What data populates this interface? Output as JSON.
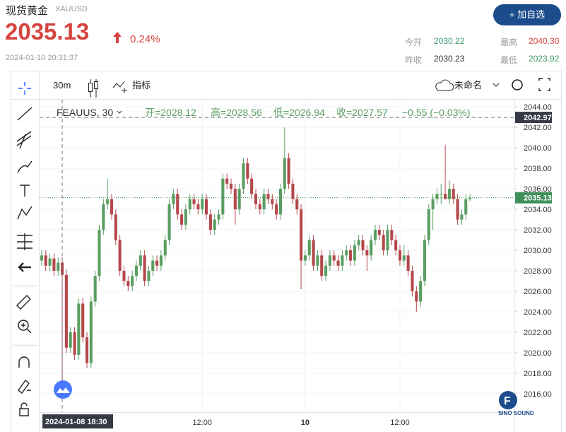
{
  "header": {
    "title": "现货黄金",
    "symbol": "XAUUSD",
    "price": "2035.13",
    "change_pct": "0.24%",
    "timestamp": "2024-01-10 20:31:37",
    "button": "+ 加自选",
    "stats": [
      {
        "label": "今开",
        "value": "2030.22"
      },
      {
        "label": "最高",
        "value": "2040.30"
      },
      {
        "label": "昨收",
        "value": "2030.23"
      },
      {
        "label": "最低",
        "value": "2023.92"
      }
    ]
  },
  "toolbar": {
    "interval": "30m",
    "indicators": "指标",
    "layout": "未命名"
  },
  "legend": {
    "symbol": "FEAUUS, 30",
    "open": "开=2028.12",
    "high": "高=2028.56",
    "low": "低=2026.94",
    "close": "收=2027.57",
    "change": "−0.55 (−0.03%)"
  },
  "logo_text": "SINO SOUND",
  "chart_data": {
    "type": "candlestick",
    "up_color": "#5a9e62",
    "down_color": "#b5474b",
    "ylim": [
      2014.2,
      2044.7
    ],
    "xlim": [
      -0.5,
      114.8
    ],
    "yticks": [
      {
        "value": 2016,
        "label": "2016.00"
      },
      {
        "value": 2018,
        "label": "2018.00"
      },
      {
        "value": 2020,
        "label": "2020.00"
      },
      {
        "value": 2022,
        "label": "2022.00"
      },
      {
        "value": 2024,
        "label": "2024.00"
      },
      {
        "value": 2026,
        "label": "2026.00"
      },
      {
        "value": 2028,
        "label": "2028.00"
      },
      {
        "value": 2030,
        "label": "2030.00"
      },
      {
        "value": 2032,
        "label": "2032.00"
      },
      {
        "value": 2034,
        "label": "2034.00"
      },
      {
        "value": 2036,
        "label": "2036.00"
      },
      {
        "value": 2038,
        "label": "2038.00"
      },
      {
        "value": 2040,
        "label": "2040.00"
      },
      {
        "value": 2042,
        "label": "2042.00"
      },
      {
        "value": 2044,
        "label": "2044.00"
      }
    ],
    "xticks": [
      {
        "value": 39,
        "label": "12:00"
      },
      {
        "value": 64,
        "label": "10"
      },
      {
        "value": 87,
        "label": "12:00"
      }
    ],
    "crosshair": {
      "x": {
        "value": 5,
        "label": "2024-01-08  18:30"
      },
      "y": 2042.97
    },
    "last_price": 2035.13,
    "candles": [
      [
        2029.0,
        2030.0,
        2028.5,
        2029.5
      ],
      [
        2029.5,
        2030.0,
        2028.0,
        2028.5
      ],
      [
        2028.5,
        2029.7,
        2028.0,
        2029.2
      ],
      [
        2029.2,
        2029.7,
        2027.5,
        2028.0
      ],
      [
        2028.0,
        2029.3,
        2027.5,
        2028.8
      ],
      [
        2028.8,
        2029.3,
        2017.0,
        2027.6
      ],
      [
        2027.6,
        2028.1,
        2020.0,
        2020.5
      ],
      [
        2020.5,
        2022.5,
        2020.0,
        2022.0
      ],
      [
        2022.0,
        2022.5,
        2019.3,
        2019.8
      ],
      [
        2019.8,
        2025.3,
        2019.3,
        2024.8
      ],
      [
        2024.8,
        2025.3,
        2021.0,
        2021.5
      ],
      [
        2021.5,
        2022.0,
        2018.5,
        2019.0
      ],
      [
        2019.0,
        2025.5,
        2018.5,
        2025.0
      ],
      [
        2025.0,
        2028.0,
        2024.5,
        2027.5
      ],
      [
        2027.5,
        2032.5,
        2027.0,
        2032.0
      ],
      [
        2032.0,
        2035.0,
        2031.5,
        2034.5
      ],
      [
        2034.5,
        2037.0,
        2034.0,
        2035.0
      ],
      [
        2035.0,
        2035.5,
        2033.0,
        2033.5
      ],
      [
        2033.5,
        2034.0,
        2030.5,
        2031.0
      ],
      [
        2031.0,
        2031.5,
        2027.5,
        2028.0
      ],
      [
        2028.0,
        2028.5,
        2026.5,
        2027.0
      ],
      [
        2027.0,
        2027.5,
        2026.0,
        2026.5
      ],
      [
        2026.5,
        2028.0,
        2026.0,
        2027.5
      ],
      [
        2027.5,
        2029.0,
        2027.0,
        2028.5
      ],
      [
        2028.5,
        2030.0,
        2028.0,
        2029.5
      ],
      [
        2029.5,
        2030.0,
        2026.5,
        2027.0
      ],
      [
        2027.0,
        2028.5,
        2026.5,
        2028.0
      ],
      [
        2028.0,
        2029.5,
        2027.5,
        2029.0
      ],
      [
        2029.0,
        2029.5,
        2028.0,
        2028.5
      ],
      [
        2028.5,
        2030.0,
        2028.0,
        2029.5
      ],
      [
        2029.5,
        2031.5,
        2029.0,
        2031.0
      ],
      [
        2031.0,
        2035.0,
        2030.5,
        2034.5
      ],
      [
        2034.5,
        2036.0,
        2034.0,
        2035.5
      ],
      [
        2035.5,
        2036.0,
        2033.0,
        2033.5
      ],
      [
        2033.5,
        2034.0,
        2032.0,
        2032.5
      ],
      [
        2032.5,
        2034.5,
        2032.0,
        2034.0
      ],
      [
        2034.0,
        2035.5,
        2033.5,
        2035.0
      ],
      [
        2035.0,
        2035.5,
        2034.0,
        2034.5
      ],
      [
        2034.5,
        2035.0,
        2033.5,
        2034.0
      ],
      [
        2034.0,
        2035.5,
        2033.5,
        2035.0
      ],
      [
        2035.0,
        2035.5,
        2033.0,
        2033.5
      ],
      [
        2033.5,
        2034.0,
        2031.5,
        2032.0
      ],
      [
        2032.0,
        2033.5,
        2031.5,
        2033.0
      ],
      [
        2033.0,
        2034.0,
        2032.5,
        2033.5
      ],
      [
        2033.5,
        2037.5,
        2033.0,
        2037.0
      ],
      [
        2037.0,
        2037.5,
        2036.0,
        2036.5
      ],
      [
        2036.5,
        2037.0,
        2035.5,
        2036.0
      ],
      [
        2036.0,
        2036.5,
        2032.5,
        2034.0
      ],
      [
        2034.0,
        2036.5,
        2033.5,
        2036.0
      ],
      [
        2036.0,
        2039.0,
        2035.5,
        2038.5
      ],
      [
        2038.5,
        2039.0,
        2036.5,
        2037.0
      ],
      [
        2037.0,
        2037.5,
        2035.0,
        2035.5
      ],
      [
        2035.5,
        2036.0,
        2034.0,
        2034.5
      ],
      [
        2034.5,
        2035.0,
        2033.5,
        2034.0
      ],
      [
        2034.0,
        2036.0,
        2033.5,
        2035.5
      ],
      [
        2035.5,
        2036.0,
        2034.5,
        2035.0
      ],
      [
        2035.0,
        2035.5,
        2034.0,
        2034.5
      ],
      [
        2034.5,
        2035.0,
        2033.0,
        2033.5
      ],
      [
        2033.5,
        2036.5,
        2033.0,
        2036.0
      ],
      [
        2036.0,
        2042.0,
        2035.5,
        2039.0
      ],
      [
        2039.0,
        2039.5,
        2036.0,
        2036.5
      ],
      [
        2036.5,
        2037.0,
        2034.5,
        2035.0
      ],
      [
        2035.0,
        2035.5,
        2033.5,
        2034.0
      ],
      [
        2034.0,
        2034.5,
        2026.2,
        2029.0
      ],
      [
        2029.0,
        2030.0,
        2028.5,
        2029.5
      ],
      [
        2029.5,
        2031.5,
        2029.0,
        2031.0
      ],
      [
        2031.0,
        2031.5,
        2028.0,
        2028.5
      ],
      [
        2028.5,
        2030.0,
        2028.0,
        2029.5
      ],
      [
        2029.5,
        2030.0,
        2027.0,
        2027.5
      ],
      [
        2027.5,
        2029.0,
        2027.0,
        2028.5
      ],
      [
        2028.5,
        2030.0,
        2028.0,
        2029.5
      ],
      [
        2029.5,
        2030.0,
        2028.5,
        2029.0
      ],
      [
        2029.0,
        2029.5,
        2028.0,
        2028.5
      ],
      [
        2028.5,
        2030.0,
        2028.0,
        2029.5
      ],
      [
        2029.5,
        2030.5,
        2029.0,
        2030.0
      ],
      [
        2030.0,
        2030.5,
        2028.5,
        2029.0
      ],
      [
        2029.0,
        2031.0,
        2028.5,
        2030.5
      ],
      [
        2030.5,
        2031.5,
        2030.0,
        2031.0
      ],
      [
        2031.0,
        2031.5,
        2029.5,
        2030.0
      ],
      [
        2030.0,
        2030.5,
        2028.0,
        2029.5
      ],
      [
        2029.5,
        2031.5,
        2029.0,
        2031.0
      ],
      [
        2031.0,
        2032.5,
        2030.5,
        2032.0
      ],
      [
        2032.0,
        2032.5,
        2031.0,
        2031.5
      ],
      [
        2031.5,
        2032.0,
        2029.5,
        2030.0
      ],
      [
        2030.0,
        2032.5,
        2029.5,
        2032.0
      ],
      [
        2032.0,
        2032.5,
        2030.5,
        2031.0
      ],
      [
        2031.0,
        2031.5,
        2029.5,
        2030.0
      ],
      [
        2030.0,
        2030.5,
        2028.5,
        2029.0
      ],
      [
        2029.0,
        2030.5,
        2028.5,
        2029.5
      ],
      [
        2029.5,
        2030.0,
        2027.5,
        2028.0
      ],
      [
        2028.0,
        2028.5,
        2025.5,
        2026.0
      ],
      [
        2026.0,
        2026.5,
        2024.0,
        2025.0
      ],
      [
        2025.0,
        2027.5,
        2024.5,
        2027.0
      ],
      [
        2027.0,
        2031.5,
        2026.5,
        2031.0
      ],
      [
        2031.0,
        2034.5,
        2030.5,
        2034.0
      ],
      [
        2034.0,
        2035.5,
        2032.0,
        2035.0
      ],
      [
        2035.0,
        2036.0,
        2034.5,
        2035.5
      ],
      [
        2035.5,
        2036.5,
        2034.5,
        2035.5
      ],
      [
        2035.5,
        2040.3,
        2035.0,
        2035.0
      ],
      [
        2035.0,
        2036.8,
        2034.5,
        2036.0
      ],
      [
        2036.0,
        2036.5,
        2034.5,
        2035.0
      ],
      [
        2035.0,
        2035.5,
        2032.5,
        2033.0
      ],
      [
        2033.0,
        2034.0,
        2032.5,
        2033.5
      ],
      [
        2033.5,
        2035.5,
        2033.0,
        2035.0
      ],
      [
        2035.0,
        2035.5,
        2034.8,
        2035.13
      ]
    ]
  }
}
